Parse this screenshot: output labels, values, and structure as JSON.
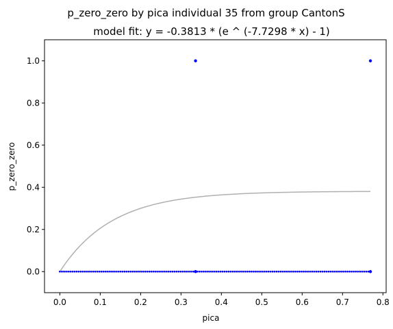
{
  "chart_data": {
    "type": "scatter",
    "title": "p_zero_zero by pica individual 35 from group CantonS",
    "subtitle": "model fit: y = -0.3813 * (e ^ (-7.7298 * x) - 1)",
    "xlabel": "pica",
    "ylabel": "p_zero_zero",
    "xlim": [
      -0.038,
      0.808
    ],
    "ylim": [
      -0.1,
      1.1
    ],
    "x_ticks": [
      0.0,
      0.1,
      0.2,
      0.3,
      0.4,
      0.5,
      0.6,
      0.7,
      0.8
    ],
    "x_tick_labels": [
      "0.0",
      "0.1",
      "0.2",
      "0.3",
      "0.4",
      "0.5",
      "0.6",
      "0.7",
      "0.8"
    ],
    "y_ticks": [
      0.0,
      0.2,
      0.4,
      0.6,
      0.8,
      1.0
    ],
    "y_tick_labels": [
      "0.0",
      "0.2",
      "0.4",
      "0.6",
      "0.8",
      "1.0"
    ],
    "grid": false,
    "points_color": "#0000ff",
    "fit_color": "#b0b0b0",
    "scatter": {
      "high_points": [
        {
          "x": 0.336,
          "y": 1.0
        },
        {
          "x": 0.769,
          "y": 1.0
        }
      ],
      "zero_row": {
        "y": 0.0,
        "x_start": 0.0,
        "x_end": 0.769,
        "count": 150
      }
    },
    "fit": {
      "a": 0.3813,
      "k": 7.7298,
      "x_range": [
        0.0,
        0.769
      ]
    }
  }
}
